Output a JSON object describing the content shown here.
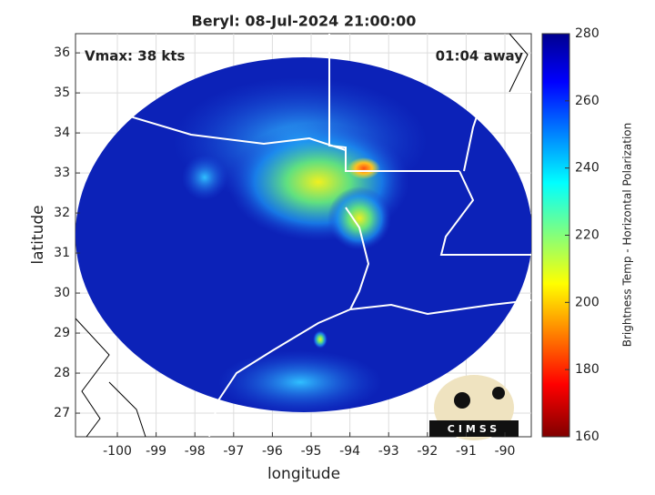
{
  "chart_data": {
    "type": "map",
    "title": "Beryl: 08-Jul-2024 21:00:00",
    "annotations": [
      "Vmax: 38 kts",
      "01:04 away"
    ],
    "x_label": "longitude",
    "y_label": "latitude",
    "xlim": [
      -101.08,
      -89.32
    ],
    "xticks": [
      -100,
      -99,
      -98,
      -97,
      -96,
      -95,
      -94,
      -93,
      -92,
      -91,
      -90
    ],
    "ylim": [
      26.41,
      36.48
    ],
    "yticks": [
      27,
      28,
      29,
      30,
      31,
      32,
      33,
      34,
      35,
      36
    ],
    "grid": true,
    "colorbar": {
      "label": "Brightness Temp - Horizontal Polarization",
      "clim": [
        160,
        280
      ],
      "ticks": [
        160,
        180,
        200,
        220,
        240,
        260,
        280
      ]
    },
    "logo": "CIMSS"
  }
}
